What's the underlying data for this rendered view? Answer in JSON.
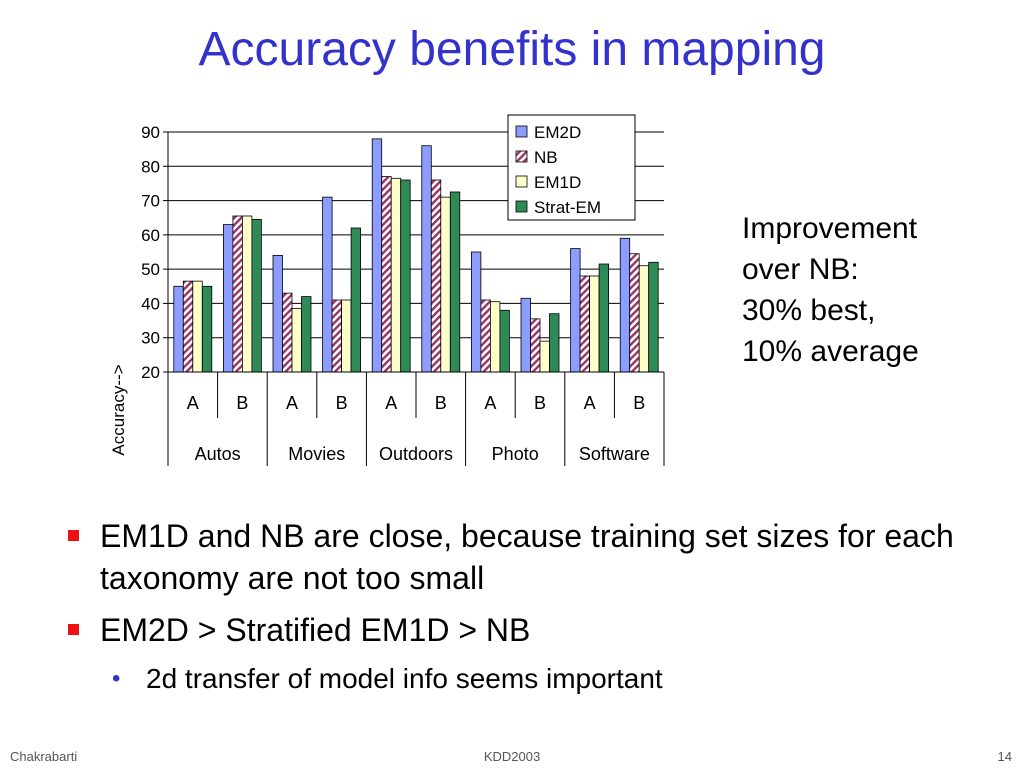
{
  "slide": {
    "title": "Accuracy benefits in mapping",
    "side_note": [
      "Improvement",
      "over NB:",
      "30% best,",
      "10% average"
    ],
    "bullets": [
      {
        "text": "EM1D and NB are close, because training set sizes for each taxonomy are not too small"
      },
      {
        "text": "EM2D > Stratified EM1D > NB"
      }
    ],
    "sub_bullets": [
      {
        "text": "2d transfer of model info seems important"
      }
    ],
    "footer": {
      "left": "Chakrabarti",
      "center": "KDD2003",
      "right": "14"
    },
    "colors": {
      "title": "#3333cc",
      "bullet_square": "#ee1111",
      "sub_bullet_dot": "#3333cc"
    }
  },
  "chart_data": {
    "type": "bar",
    "ylabel": "Accuracy-->",
    "ylim": [
      20,
      90
    ],
    "yticks": [
      20,
      30,
      40,
      50,
      60,
      70,
      80,
      90
    ],
    "grid": true,
    "legend_position": "top-right",
    "groups": [
      "Autos",
      "Movies",
      "Outdoors",
      "Photo",
      "Software"
    ],
    "categories": [
      "A",
      "B",
      "A",
      "B",
      "A",
      "B",
      "A",
      "B",
      "A",
      "B"
    ],
    "series": [
      {
        "name": "EM2D",
        "color": "#8c9cff",
        "pattern": "solid",
        "values": [
          45,
          63,
          54,
          71,
          88,
          86,
          55,
          41.5,
          56,
          59
        ]
      },
      {
        "name": "NB",
        "color": "#993366",
        "pattern": "diagonal-hatch",
        "values": [
          46.5,
          65.5,
          43,
          41,
          77,
          76,
          41,
          35.5,
          48,
          54.5
        ]
      },
      {
        "name": "EM1D",
        "color": "#ffffcc",
        "pattern": "solid",
        "values": [
          46.5,
          65.5,
          38.5,
          41,
          76.5,
          71,
          40.5,
          29,
          48,
          51
        ]
      },
      {
        "name": "Strat-EM",
        "color": "#2e8b57",
        "pattern": "solid",
        "values": [
          45,
          64.5,
          42,
          62,
          76,
          72.5,
          38,
          37,
          51.5,
          52
        ]
      }
    ]
  }
}
